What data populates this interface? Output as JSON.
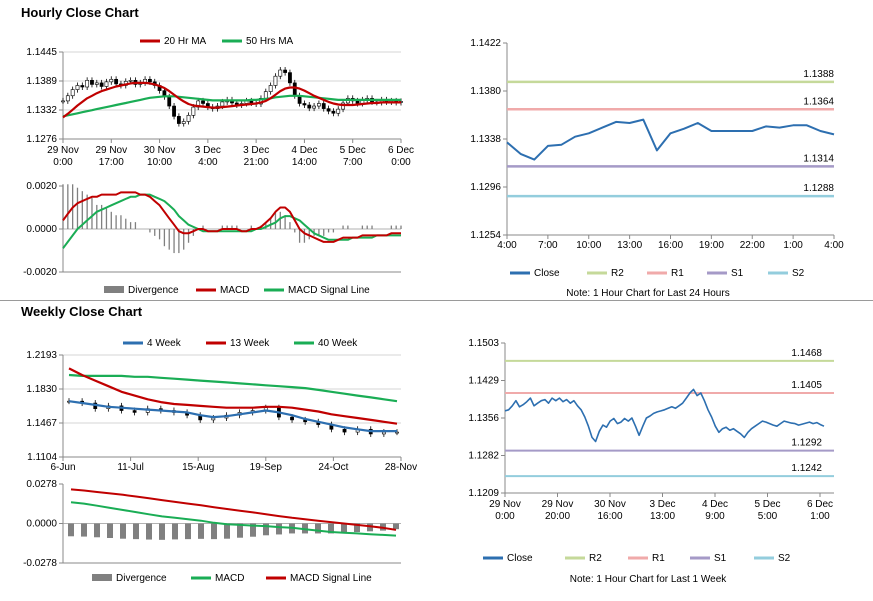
{
  "sections": {
    "hourly_title": "Hourly Close Chart",
    "weekly_title": "Weekly Close Chart"
  },
  "colors": {
    "red": "#c00000",
    "green": "#1aad55",
    "blue": "#2d6fb0",
    "r2": "#c5d99a",
    "r1": "#f0aaaa",
    "s1": "#a59ac7",
    "s2": "#93cddd",
    "divergence": "#808080"
  },
  "chart_data": [
    {
      "id": "hourly_price",
      "type": "line",
      "series_note": "candlestick price with moving averages",
      "legend": [
        "20 Hr MA",
        "50 Hrs MA"
      ],
      "x_tick_labels": [
        [
          "29 Nov",
          "0:00"
        ],
        [
          "29 Nov",
          "17:00"
        ],
        [
          "30 Nov",
          "10:00"
        ],
        [
          "3 Dec",
          "4:00"
        ],
        [
          "3 Dec",
          "21:00"
        ],
        [
          "4 Dec",
          "14:00"
        ],
        [
          "5 Dec",
          "7:00"
        ],
        [
          "6 Dec",
          "0:00"
        ]
      ],
      "y_tick_labels": [
        "1.1445",
        "1.1389",
        "1.1332",
        "1.1276"
      ],
      "ylim": [
        1.1276,
        1.1445
      ],
      "x_count": 71,
      "close": [
        1.135,
        1.136,
        1.1372,
        1.138,
        1.1377,
        1.139,
        1.1382,
        1.1385,
        1.1378,
        1.1387,
        1.1392,
        1.1383,
        1.138,
        1.1388,
        1.139,
        1.1382,
        1.1385,
        1.1392,
        1.1387,
        1.138,
        1.137,
        1.1358,
        1.134,
        1.132,
        1.1306,
        1.131,
        1.1322,
        1.1338,
        1.135,
        1.1345,
        1.1338,
        1.1335,
        1.134,
        1.1348,
        1.1352,
        1.1346,
        1.1342,
        1.1345,
        1.135,
        1.1346,
        1.1344,
        1.1355,
        1.1368,
        1.138,
        1.1398,
        1.141,
        1.1405,
        1.1385,
        1.136,
        1.1345,
        1.1342,
        1.1336,
        1.134,
        1.1345,
        1.1335,
        1.133,
        1.1326,
        1.1334,
        1.1346,
        1.1355,
        1.135,
        1.1345,
        1.1352,
        1.1355,
        1.1348,
        1.1347,
        1.1352,
        1.1348,
        1.135,
        1.1347,
        1.1349
      ],
      "ma20": [
        1.1318,
        1.1325,
        1.1333,
        1.1341,
        1.1348,
        1.1355,
        1.136,
        1.1365,
        1.1369,
        1.1372,
        1.1375,
        1.1378,
        1.138,
        1.1382,
        1.1384,
        1.1385,
        1.1385,
        1.1385,
        1.1384,
        1.1382,
        1.1379,
        1.1375,
        1.1369,
        1.1362,
        1.1355,
        1.1349,
        1.1344,
        1.1341,
        1.134,
        1.1339,
        1.1338,
        1.1337,
        1.1337,
        1.1338,
        1.1339,
        1.134,
        1.1341,
        1.1342,
        1.1343,
        1.1344,
        1.1345,
        1.1347,
        1.135,
        1.1355,
        1.1362,
        1.1369,
        1.1374,
        1.1376,
        1.1376,
        1.1374,
        1.137,
        1.1365,
        1.136,
        1.1356,
        1.1352,
        1.1348,
        1.1345,
        1.1343,
        1.1342,
        1.1342,
        1.1342,
        1.1343,
        1.1344,
        1.1345,
        1.1346,
        1.1346,
        1.1347,
        1.1347,
        1.1347,
        1.1347,
        1.1347
      ],
      "ma50": [
        1.132,
        1.1322,
        1.1324,
        1.1326,
        1.1328,
        1.133,
        1.1332,
        1.1334,
        1.1336,
        1.1338,
        1.134,
        1.1342,
        1.1344,
        1.1346,
        1.1348,
        1.135,
        1.1352,
        1.1354,
        1.1356,
        1.1357,
        1.1358,
        1.1359,
        1.1359,
        1.1359,
        1.1358,
        1.1357,
        1.1356,
        1.1355,
        1.1354,
        1.1353,
        1.1352,
        1.1351,
        1.1351,
        1.1351,
        1.1351,
        1.1351,
        1.1351,
        1.1351,
        1.1351,
        1.1352,
        1.1352,
        1.1353,
        1.1354,
        1.1355,
        1.1357,
        1.1358,
        1.1359,
        1.136,
        1.136,
        1.136,
        1.1359,
        1.1358,
        1.1357,
        1.1356,
        1.1355,
        1.1354,
        1.1353,
        1.1352,
        1.1352,
        1.1352,
        1.1352,
        1.1352,
        1.1352,
        1.1352,
        1.1352,
        1.1352,
        1.1352,
        1.1352,
        1.1352,
        1.1352,
        1.1352
      ]
    },
    {
      "id": "hourly_macd",
      "type": "line",
      "legend": [
        "Divergence",
        "MACD",
        "MACD Signal Line"
      ],
      "y_tick_labels": [
        "0.0020",
        "0.0000",
        "-0.0020"
      ],
      "ylim": [
        -0.002,
        0.002
      ],
      "x_count": 71,
      "macd": [
        0.0004,
        0.0007,
        0.001,
        0.0012,
        0.0013,
        0.0014,
        0.0015,
        0.0015,
        0.0016,
        0.0016,
        0.0016,
        0.0016,
        0.0017,
        0.0017,
        0.0017,
        0.0017,
        0.0016,
        0.0016,
        0.0015,
        0.0013,
        0.0011,
        0.0008,
        0.0005,
        0.0002,
        -0.0001,
        -0.0002,
        -0.0002,
        -0.0001,
        0.0,
        0.0,
        -0.0001,
        -0.0001,
        -0.0001,
        0.0,
        0.0,
        0.0,
        0.0,
        -0.0001,
        -0.0001,
        0.0,
        0.0,
        0.0001,
        0.0003,
        0.0005,
        0.0008,
        0.001,
        0.001,
        0.0008,
        0.0004,
        0.0,
        -0.0002,
        -0.0003,
        -0.0004,
        -0.0005,
        -0.0006,
        -0.0006,
        -0.0006,
        -0.0005,
        -0.0004,
        -0.0004,
        -0.0004,
        -0.0004,
        -0.0003,
        -0.0003,
        -0.0003,
        -0.0003,
        -0.0003,
        -0.0003,
        -0.0002,
        -0.0002,
        -0.0002
      ],
      "signal": [
        -0.0009,
        -0.0006,
        -0.0003,
        0.0,
        0.0002,
        0.0004,
        0.0006,
        0.0008,
        0.0009,
        0.001,
        0.0011,
        0.0012,
        0.0013,
        0.0014,
        0.0015,
        0.0015,
        0.0016,
        0.0016,
        0.0016,
        0.0015,
        0.0014,
        0.0013,
        0.0011,
        0.0009,
        0.0006,
        0.0004,
        0.0002,
        0.0001,
        0.0,
        -0.0001,
        -0.0001,
        -0.0001,
        -0.0001,
        -0.0001,
        -0.0001,
        -0.0001,
        -0.0001,
        -0.0001,
        -0.0001,
        -0.0001,
        0.0,
        0.0,
        0.0001,
        0.0002,
        0.0003,
        0.0005,
        0.0006,
        0.0006,
        0.0005,
        0.0004,
        0.0002,
        0.0,
        -0.0002,
        -0.0003,
        -0.0004,
        -0.0005,
        -0.0005,
        -0.0005,
        -0.0005,
        -0.0005,
        -0.0004,
        -0.0004,
        -0.0004,
        -0.0004,
        -0.0004,
        -0.0003,
        -0.0003,
        -0.0003,
        -0.0003,
        -0.0003,
        -0.0003
      ]
    },
    {
      "id": "hourly_pivots",
      "type": "line",
      "legend": [
        "Close",
        "R2",
        "R1",
        "S1",
        "S2"
      ],
      "note": "Note: 1 Hour Chart for Last 24 Hours",
      "x_tick_labels": [
        "4:00",
        "7:00",
        "10:00",
        "13:00",
        "16:00",
        "19:00",
        "22:00",
        "1:00",
        "4:00"
      ],
      "y_tick_labels": [
        "1.1422",
        "1.1380",
        "1.1338",
        "1.1296",
        "1.1254"
      ],
      "ylim": [
        1.1254,
        1.1422
      ],
      "levels": {
        "R2": 1.1388,
        "R1": 1.1364,
        "S1": 1.1314,
        "S2": 1.1288
      },
      "level_labels": {
        "R2": "1.1388",
        "R1": "1.1364",
        "S1": "1.1314",
        "S2": "1.1288"
      },
      "close": [
        1.1335,
        1.1325,
        1.132,
        1.1332,
        1.1333,
        1.134,
        1.1343,
        1.1348,
        1.1353,
        1.1352,
        1.1355,
        1.1328,
        1.1343,
        1.1347,
        1.1352,
        1.1345,
        1.1345,
        1.1345,
        1.1345,
        1.1349,
        1.1348,
        1.135,
        1.135,
        1.1345,
        1.1342
      ]
    },
    {
      "id": "weekly_price",
      "type": "line",
      "series_note": "candlestick price with moving averages",
      "legend": [
        "4 Week",
        "13 Week",
        "40 Week"
      ],
      "x_tick_labels": [
        "6-Jun",
        "11-Jul",
        "15-Aug",
        "19-Sep",
        "24-Oct",
        "28-Nov"
      ],
      "y_tick_labels": [
        "1.2193",
        "1.1830",
        "1.1467",
        "1.1104"
      ],
      "ylim": [
        1.1104,
        1.2193
      ],
      "x_count": 26,
      "close": [
        1.17,
        1.168,
        1.162,
        1.165,
        1.16,
        1.158,
        1.162,
        1.16,
        1.158,
        1.155,
        1.15,
        1.152,
        1.155,
        1.158,
        1.16,
        1.163,
        1.153,
        1.15,
        1.148,
        1.145,
        1.14,
        1.137,
        1.14,
        1.135,
        1.137,
        1.137
      ],
      "wk4": [
        1.17,
        1.168,
        1.166,
        1.164,
        1.163,
        1.162,
        1.161,
        1.16,
        1.159,
        1.158,
        1.155,
        1.153,
        1.154,
        1.156,
        1.158,
        1.16,
        1.158,
        1.155,
        1.151,
        1.148,
        1.145,
        1.142,
        1.14,
        1.138,
        1.138,
        1.138
      ],
      "wk13": [
        1.205,
        1.198,
        1.192,
        1.186,
        1.18,
        1.176,
        1.172,
        1.169,
        1.167,
        1.166,
        1.165,
        1.164,
        1.163,
        1.163,
        1.163,
        1.164,
        1.164,
        1.163,
        1.161,
        1.159,
        1.156,
        1.154,
        1.152,
        1.15,
        1.148,
        1.146
      ],
      "wk40": [
        1.198,
        1.197,
        1.197,
        1.197,
        1.197,
        1.196,
        1.196,
        1.195,
        1.194,
        1.193,
        1.192,
        1.191,
        1.19,
        1.189,
        1.188,
        1.187,
        1.186,
        1.185,
        1.184,
        1.182,
        1.18,
        1.178,
        1.176,
        1.174,
        1.172,
        1.17
      ]
    },
    {
      "id": "weekly_macd",
      "type": "line",
      "legend": [
        "Divergence",
        "MACD",
        "MACD Signal Line"
      ],
      "y_tick_labels": [
        "0.0278",
        "0.0000",
        "-0.0278"
      ],
      "ylim": [
        -0.0278,
        0.0278
      ],
      "x_count": 26,
      "macd": [
        0.015,
        0.014,
        0.0125,
        0.011,
        0.0095,
        0.008,
        0.0065,
        0.005,
        0.004,
        0.003,
        0.002,
        0.0005,
        -0.0005,
        -0.001,
        -0.0015,
        -0.0018,
        -0.0025,
        -0.003,
        -0.004,
        -0.005,
        -0.006,
        -0.0065,
        -0.007,
        -0.0075,
        -0.008,
        -0.0085
      ],
      "signal": [
        0.024,
        0.0232,
        0.0222,
        0.0212,
        0.0202,
        0.019,
        0.0178,
        0.0165,
        0.0152,
        0.014,
        0.0128,
        0.0115,
        0.0102,
        0.009,
        0.0078,
        0.0065,
        0.0052,
        0.004,
        0.003,
        0.002,
        0.001,
        0.0,
        -0.001,
        -0.002,
        -0.003,
        -0.0045
      ],
      "divergence": [
        -0.009,
        -0.0092,
        -0.0097,
        -0.0102,
        -0.0107,
        -0.011,
        -0.0113,
        -0.0115,
        -0.0112,
        -0.011,
        -0.0108,
        -0.011,
        -0.0107,
        -0.01,
        -0.0093,
        -0.0083,
        -0.0077,
        -0.007,
        -0.007,
        -0.007,
        -0.007,
        -0.0065,
        -0.006,
        -0.0055,
        -0.005,
        -0.004
      ]
    },
    {
      "id": "weekly_pivots",
      "type": "line",
      "legend": [
        "Close",
        "R2",
        "R1",
        "S1",
        "S2"
      ],
      "note": "Note: 1 Hour Chart for Last 1 Week",
      "x_tick_labels": [
        [
          "29 Nov",
          "0:00"
        ],
        [
          "29 Nov",
          "20:00"
        ],
        [
          "30 Nov",
          "16:00"
        ],
        [
          "3 Dec",
          "13:00"
        ],
        [
          "4 Dec",
          "9:00"
        ],
        [
          "5 Dec",
          "5:00"
        ],
        [
          "6 Dec",
          "1:00"
        ]
      ],
      "y_tick_labels": [
        "1.1503",
        "1.1429",
        "1.1356",
        "1.1282",
        "1.1209"
      ],
      "ylim": [
        1.1209,
        1.1503
      ],
      "levels": {
        "R2": 1.1468,
        "R1": 1.1405,
        "S1": 1.1292,
        "S2": 1.1242
      },
      "level_labels": {
        "R2": "1.1468",
        "R1": "1.1405",
        "S1": "1.1292",
        "S2": "1.1242"
      },
      "close": [
        1.137,
        1.1372,
        1.138,
        1.139,
        1.1378,
        1.1382,
        1.1388,
        1.1395,
        1.138,
        1.1385,
        1.139,
        1.1392,
        1.1385,
        1.1395,
        1.139,
        1.1395,
        1.1388,
        1.1392,
        1.1385,
        1.139,
        1.138,
        1.1372,
        1.1358,
        1.134,
        1.1318,
        1.131,
        1.133,
        1.1342,
        1.1338,
        1.135,
        1.1355,
        1.1345,
        1.1348,
        1.1355,
        1.135,
        1.1356,
        1.134,
        1.1322,
        1.134,
        1.1356,
        1.136,
        1.1365,
        1.1368,
        1.137,
        1.1372,
        1.1375,
        1.1378,
        1.1375,
        1.138,
        1.1385,
        1.1395,
        1.1405,
        1.1412,
        1.14,
        1.1405,
        1.139,
        1.1372,
        1.1358,
        1.134,
        1.1328,
        1.1335,
        1.1338,
        1.1332,
        1.1335,
        1.133,
        1.1325,
        1.1318,
        1.1328,
        1.1335,
        1.134,
        1.1345,
        1.135,
        1.1348,
        1.1345,
        1.1342,
        1.134,
        1.1345,
        1.135,
        1.1348,
        1.1346,
        1.1345,
        1.1342,
        1.1344,
        1.1346,
        1.1348,
        1.1345,
        1.1347,
        1.1343,
        1.134
      ]
    }
  ]
}
